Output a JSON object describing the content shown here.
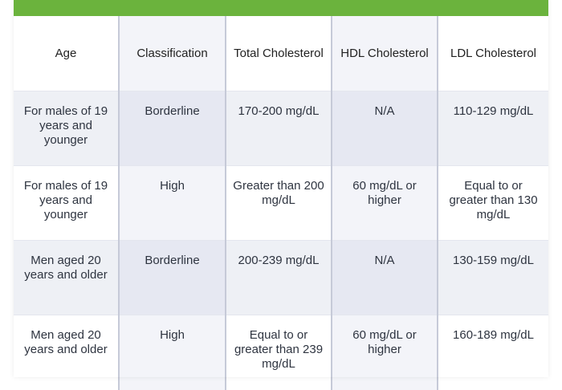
{
  "accent_color": "#6bb33d",
  "headers": [
    "Age",
    "Classification",
    "Total Cholesterol",
    "HDL Cholesterol",
    "LDL Cholesterol"
  ],
  "rows": [
    [
      "For males of 19 years and younger",
      "Borderline",
      "170-200 mg/dL",
      "N/A",
      "110-129 mg/dL"
    ],
    [
      "For males of 19 years and younger",
      "High",
      "Greater than 200 mg/dL",
      "60 mg/dL or higher",
      "Equal to or greater than 130 mg/dL"
    ],
    [
      "Men aged 20 years and older",
      "Borderline",
      "200-239 mg/dL",
      "N/A",
      "130-159 mg/dL"
    ],
    [
      "Men aged 20 years and older",
      "High",
      "Equal to or greater than 239 mg/dL",
      "60 mg/dL or higher",
      "160-189 mg/dL"
    ]
  ]
}
